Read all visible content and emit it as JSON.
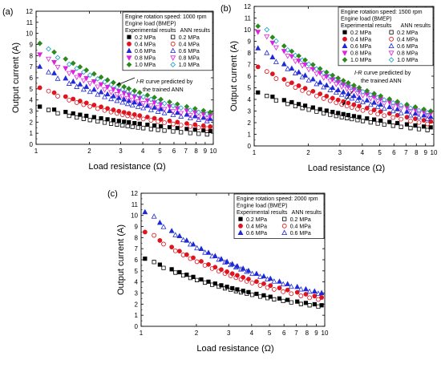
{
  "chart_data": [
    {
      "panel": "(a)",
      "type": "scatter",
      "xlabel": "Load resistance (Ω)",
      "ylabel": "Output current (A)",
      "xscale": "log",
      "xlim": [
        1,
        10
      ],
      "ylim": [
        0,
        12
      ],
      "xticks": [
        1,
        2,
        3,
        4,
        5,
        6,
        7,
        8,
        9,
        10
      ],
      "yticks": [
        0,
        1,
        2,
        3,
        4,
        5,
        6,
        7,
        8,
        9,
        10,
        11,
        12
      ],
      "grid": false,
      "legend": {
        "placement": "top-right",
        "lines": [
          "Engine rotation speed: 1000 rpm",
          "Engine load (BMEP)"
        ],
        "col_titles": [
          "Experimental results",
          "ANN results"
        ]
      },
      "annotation": {
        "text_italic": "I-R",
        "text_rest": " curve predicted by",
        "text_line2": "the trained ANN"
      },
      "x": [
        1.05,
        1.25,
        1.45,
        1.6,
        1.75,
        1.9,
        2.1,
        2.3,
        2.5,
        2.7,
        2.9,
        3.1,
        3.3,
        3.55,
        3.8,
        4.2,
        4.6,
        5.0,
        5.6,
        6.2,
        7.0,
        7.8,
        8.7,
        9.5
      ],
      "series": [
        {
          "name": "0.2 MPa",
          "color": "#000000",
          "exp_marker": "square",
          "ann_marker": "open-square",
          "exp_y0": 3.4,
          "ann_y0": 3.1,
          "exp_y1": 1.2,
          "ann_y1": 0.85
        },
        {
          "name": "0.4 MPa",
          "color": "#e0141e",
          "exp_marker": "circle",
          "ann_marker": "open-circle",
          "exp_y0": 5.1,
          "ann_y0": 4.8,
          "exp_y1": 1.6,
          "ann_y1": 1.35
        },
        {
          "name": "0.6 MPa",
          "color": "#1f2ad6",
          "exp_marker": "triangle",
          "ann_marker": "open-triangle",
          "exp_y0": 7.0,
          "ann_y0": 6.5,
          "exp_y1": 2.3,
          "ann_y1": 2.0
        },
        {
          "name": "0.8 MPa",
          "color": "#e020e0",
          "exp_marker": "triangle-down",
          "ann_marker": "open-triangle-down",
          "exp_y0": 8.1,
          "ann_y0": 7.7,
          "exp_y1": 2.6,
          "ann_y1": 2.2
        },
        {
          "name": "1.0 MPa",
          "color": "#2a8a1e",
          "exp_marker": "diamond",
          "ann_marker": "open-diamond",
          "exp_y0": 9.1,
          "ann_y0": 8.6,
          "exp_y1": 2.9,
          "ann_y1": 2.6
        }
      ],
      "ann_color_1": "#12a0c8"
    },
    {
      "panel": "(b)",
      "type": "scatter",
      "xlabel": "Load resistance (Ω)",
      "ylabel": "Output current (A)",
      "xscale": "log",
      "xlim": [
        1,
        10
      ],
      "ylim": [
        0,
        12
      ],
      "xticks": [
        1,
        2,
        3,
        4,
        5,
        6,
        7,
        8,
        9,
        10
      ],
      "yticks": [
        0,
        1,
        2,
        3,
        4,
        5,
        6,
        7,
        8,
        9,
        10,
        11,
        12
      ],
      "grid": false,
      "legend": {
        "placement": "top-right",
        "lines": [
          "Engine rotation speed: 1500 rpm",
          "Engine load (BMEP)"
        ],
        "col_titles": [
          "Experimental results",
          "ANN results"
        ]
      },
      "annotation": {
        "text_italic": "I-R",
        "text_rest": " curve predicted by",
        "text_line2": "the trained ANN"
      },
      "x": [
        1.05,
        1.25,
        1.45,
        1.6,
        1.75,
        1.9,
        2.1,
        2.3,
        2.5,
        2.7,
        2.9,
        3.1,
        3.3,
        3.55,
        3.8,
        4.2,
        4.6,
        5.0,
        5.6,
        6.2,
        7.0,
        7.8,
        8.7,
        9.5
      ],
      "series": [
        {
          "name": "0.2 MPa",
          "color": "#000000",
          "exp_marker": "square",
          "ann_marker": "open-square",
          "exp_y0": 4.6,
          "ann_y0": 4.3,
          "exp_y1": 1.6,
          "ann_y1": 1.3
        },
        {
          "name": "0.4 MPa",
          "color": "#e0141e",
          "exp_marker": "circle",
          "ann_marker": "open-circle",
          "exp_y0": 6.8,
          "ann_y0": 6.4,
          "exp_y1": 2.1,
          "ann_y1": 1.8
        },
        {
          "name": "0.6 MPa",
          "color": "#1f2ad6",
          "exp_marker": "triangle",
          "ann_marker": "open-triangle",
          "exp_y0": 8.4,
          "ann_y0": 8.0,
          "exp_y1": 2.5,
          "ann_y1": 2.2
        },
        {
          "name": "0.8 MPa",
          "color": "#e020e0",
          "exp_marker": "triangle-down",
          "ann_marker": "open-triangle-down",
          "exp_y0": 9.8,
          "ann_y0": 9.4,
          "exp_y1": 2.8,
          "ann_y1": 2.5
        },
        {
          "name": "1.0 MPa",
          "color": "#2a8a1e",
          "exp_marker": "diamond",
          "ann_marker": "open-diamond",
          "exp_y0": 10.3,
          "ann_y0": 10.0,
          "exp_y1": 3.0,
          "ann_y1": 2.7
        }
      ],
      "ann_color_1": "#12a0c8"
    },
    {
      "panel": "(c)",
      "type": "scatter",
      "xlabel": "Load resistance (Ω)",
      "ylabel": "Output current (A)",
      "xscale": "log",
      "xlim": [
        1,
        10
      ],
      "ylim": [
        0,
        12
      ],
      "xticks": [
        1,
        2,
        3,
        4,
        5,
        6,
        7,
        8,
        9,
        10
      ],
      "yticks": [
        0,
        1,
        2,
        3,
        4,
        5,
        6,
        7,
        8,
        9,
        10,
        11,
        12
      ],
      "grid": false,
      "legend": {
        "placement": "top-right",
        "lines": [
          "Engine rotation speed: 2000 rpm",
          "Engine load (BMEP)"
        ],
        "col_titles": [
          "Experimental results",
          "ANN results"
        ]
      },
      "x": [
        1.05,
        1.25,
        1.45,
        1.6,
        1.75,
        1.9,
        2.1,
        2.3,
        2.5,
        2.7,
        2.9,
        3.1,
        3.3,
        3.55,
        3.8,
        4.2,
        4.6,
        5.0,
        5.6,
        6.2,
        7.0,
        7.8,
        8.7,
        9.5
      ],
      "series": [
        {
          "name": "0.2 MPa",
          "color": "#000000",
          "exp_marker": "square",
          "ann_marker": "open-square",
          "exp_y0": 6.1,
          "ann_y0": 5.8,
          "exp_y1": 1.9,
          "ann_y1": 1.7
        },
        {
          "name": "0.4 MPa",
          "color": "#e0141e",
          "exp_marker": "circle",
          "ann_marker": "open-circle",
          "exp_y0": 8.5,
          "ann_y0": 8.2,
          "exp_y1": 2.6,
          "ann_y1": 2.3
        },
        {
          "name": "0.6 MPa",
          "color": "#1f2ad6",
          "exp_marker": "triangle",
          "ann_marker": "open-triangle",
          "exp_y0": 10.3,
          "ann_y0": 9.9,
          "exp_y1": 3.0,
          "ann_y1": 2.8
        }
      ]
    }
  ]
}
